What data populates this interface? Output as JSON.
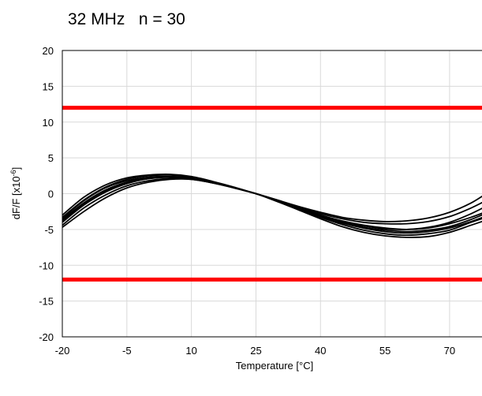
{
  "chart_data": {
    "type": "line",
    "title": "32 MHz   n = 30",
    "xlabel": "Temperature [°C]",
    "ylabel": "dF/F [x10",
    "ylabel_superscript": "-6",
    "ylabel_suffix": "]",
    "xlim": [
      -20,
      79
    ],
    "ylim": [
      -20,
      20
    ],
    "xticks": [
      -20,
      -5,
      10,
      25,
      40,
      55,
      70
    ],
    "yticks": [
      -20,
      -15,
      -10,
      -5,
      0,
      5,
      10,
      15,
      20
    ],
    "grid": true,
    "legend": "none",
    "limits": [
      12,
      -12
    ],
    "limit_color": "#ff0000",
    "series_color": "#000000",
    "sample_count": 30,
    "x": [
      -20,
      -15,
      -10,
      -5,
      0,
      5,
      10,
      15,
      20,
      25,
      30,
      35,
      40,
      45,
      50,
      55,
      60,
      65,
      70,
      75,
      79
    ],
    "series": [
      {
        "values": [
          -3.5,
          -1.0,
          0.8,
          1.8,
          2.3,
          2.4,
          2.2,
          1.6,
          0.8,
          0.0,
          -1.0,
          -2.0,
          -3.0,
          -3.8,
          -4.4,
          -4.8,
          -5.0,
          -4.8,
          -4.2,
          -3.3,
          -2.4
        ]
      },
      {
        "values": [
          -3.0,
          -0.5,
          1.2,
          2.2,
          2.6,
          2.7,
          2.4,
          1.7,
          0.9,
          0.0,
          -0.9,
          -1.8,
          -2.6,
          -3.3,
          -3.7,
          -3.9,
          -3.8,
          -3.4,
          -2.6,
          -1.3,
          0.2
        ]
      },
      {
        "values": [
          -4.7,
          -2.5,
          -0.6,
          0.8,
          1.6,
          2.0,
          2.0,
          1.5,
          0.8,
          0.0,
          -1.1,
          -2.3,
          -3.5,
          -4.6,
          -5.4,
          -5.9,
          -6.1,
          -6.0,
          -5.4,
          -4.4,
          -3.6
        ]
      },
      {
        "values": [
          -4.0,
          -1.6,
          0.2,
          1.4,
          2.1,
          2.3,
          2.1,
          1.5,
          0.8,
          0.0,
          -1.0,
          -2.1,
          -3.1,
          -4.0,
          -4.7,
          -5.1,
          -5.3,
          -5.1,
          -4.6,
          -3.6,
          -2.6
        ]
      },
      {
        "values": [
          -3.3,
          -0.9,
          0.9,
          2.0,
          2.5,
          2.6,
          2.3,
          1.6,
          0.8,
          0.0,
          -0.9,
          -1.9,
          -2.8,
          -3.5,
          -4.0,
          -4.2,
          -4.2,
          -3.9,
          -3.2,
          -2.0,
          -0.8
        ]
      },
      {
        "values": [
          -4.4,
          -2.0,
          -0.2,
          1.1,
          1.8,
          2.1,
          2.0,
          1.5,
          0.8,
          0.0,
          -1.1,
          -2.2,
          -3.3,
          -4.3,
          -5.1,
          -5.6,
          -5.8,
          -5.6,
          -5.1,
          -4.0,
          -3.2
        ]
      },
      {
        "values": [
          -3.7,
          -1.3,
          0.5,
          1.6,
          2.2,
          2.4,
          2.2,
          1.6,
          0.8,
          0.0,
          -1.0,
          -2.0,
          -3.0,
          -3.9,
          -4.5,
          -4.9,
          -5.0,
          -4.7,
          -4.0,
          -2.8,
          -1.6
        ]
      },
      {
        "values": [
          -3.9,
          -1.5,
          0.3,
          1.5,
          2.1,
          2.3,
          2.1,
          1.5,
          0.8,
          0.0,
          -1.0,
          -2.1,
          -3.2,
          -4.1,
          -4.8,
          -5.3,
          -5.5,
          -5.3,
          -4.8,
          -3.9,
          -3.0
        ]
      }
    ]
  }
}
